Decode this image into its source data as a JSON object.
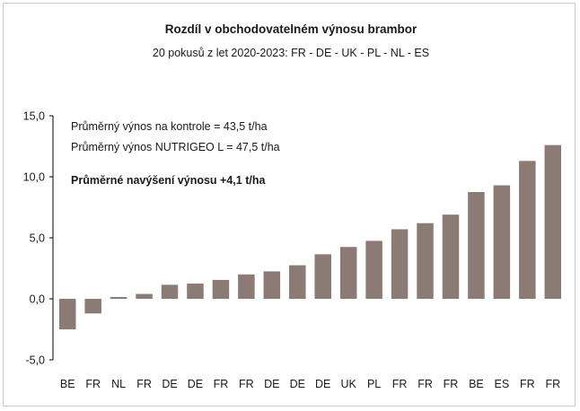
{
  "chart_data": {
    "type": "bar",
    "title": "Rozdíl v obchodovatelném výnosu brambor",
    "subtitle": "20 pokusů z let 2020-2023: FR - DE - UK - PL - NL - ES",
    "xlabel": "",
    "ylabel": "",
    "ylim": [
      -5,
      15
    ],
    "yticks": [
      "-5,0",
      "0,0",
      "5,0",
      "10,0",
      "15,0"
    ],
    "grid": false,
    "bar_color": "#8b7b74",
    "categories": [
      "BE",
      "FR",
      "NL",
      "FR",
      "DE",
      "DE",
      "FR",
      "FR",
      "DE",
      "DE",
      "DE",
      "UK",
      "PL",
      "FR",
      "FR",
      "FR",
      "BE",
      "ES",
      "FR",
      "FR"
    ],
    "values": [
      -2.5,
      -1.2,
      0.15,
      0.4,
      1.15,
      1.25,
      1.55,
      2.0,
      2.25,
      2.75,
      3.65,
      4.25,
      4.75,
      5.7,
      6.2,
      6.9,
      8.75,
      9.3,
      11.3,
      12.6
    ],
    "annotations": {
      "line1": "Průměrný výnos na kontrole = 43,5 t/ha",
      "line2": "Průměrný výnos NUTRIGEO L = 47,5 t/ha",
      "line3": "Průměrné navýšení výnosu +4,1 t/ha"
    }
  }
}
